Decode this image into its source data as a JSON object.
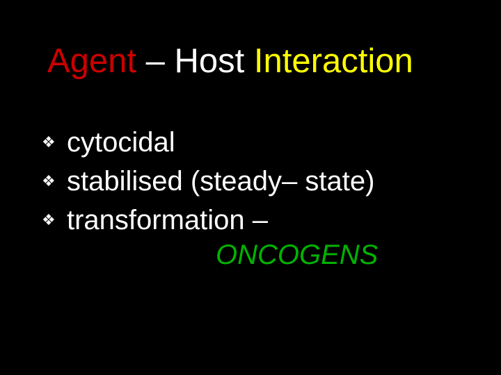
{
  "colors": {
    "background": "#000000",
    "title_red": "#cc0000",
    "title_white": "#ffffff",
    "title_yellow": "#ffff00",
    "bullet_text": "#ffffff",
    "bullet_icon": "#ffffff",
    "oncogens": "#00b300"
  },
  "typography": {
    "title_fontsize": 49,
    "bullet_fontsize": 40,
    "oncogens_fontsize": 40,
    "font_family": "Arial"
  },
  "title": {
    "part1": "Agent ",
    "part2": " – Host ",
    "part3": "Interaction"
  },
  "bullets": [
    {
      "marker": "❖",
      "text": "cytocidal"
    },
    {
      "marker": "❖",
      "text": "stabilised (steady– state)"
    },
    {
      "marker": "❖",
      "text": "transformation –"
    }
  ],
  "oncogens": "ONCOGENS"
}
